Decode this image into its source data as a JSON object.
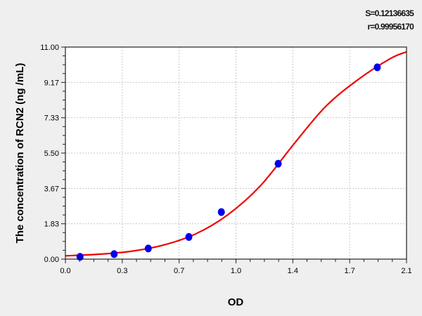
{
  "chart_data": {
    "type": "scatter",
    "title": "",
    "xlabel": "OD",
    "ylabel": "The concentration of RCN2  (ng /mL)",
    "xlim": [
      0.0,
      2.1
    ],
    "ylim": [
      0.0,
      11.0
    ],
    "x_ticks": [
      "0.0",
      "0.3",
      "0.7",
      "1.0",
      "1.4",
      "1.7",
      "2.1"
    ],
    "y_ticks": [
      "0.00",
      "1.83",
      "3.67",
      "5.50",
      "7.33",
      "9.17",
      "11.00"
    ],
    "grid": true,
    "annotations": {
      "s": "S=0.12136635",
      "r": "r=0.99956170"
    },
    "colors": {
      "points": "#0000ee",
      "curve": "#ee0000",
      "background": "#efefef"
    },
    "points": {
      "x": [
        0.09,
        0.3,
        0.51,
        0.76,
        0.96,
        1.31,
        1.92
      ],
      "y": [
        0.12,
        0.26,
        0.55,
        1.15,
        2.44,
        4.95,
        9.95
      ]
    },
    "fit_curve": {
      "x": [
        0.0,
        0.2,
        0.4,
        0.6,
        0.8,
        1.0,
        1.2,
        1.4,
        1.6,
        1.8,
        2.0,
        2.1
      ],
      "y": [
        0.17,
        0.25,
        0.4,
        0.72,
        1.3,
        2.3,
        3.8,
        5.9,
        7.9,
        9.3,
        10.4,
        10.75
      ]
    }
  }
}
